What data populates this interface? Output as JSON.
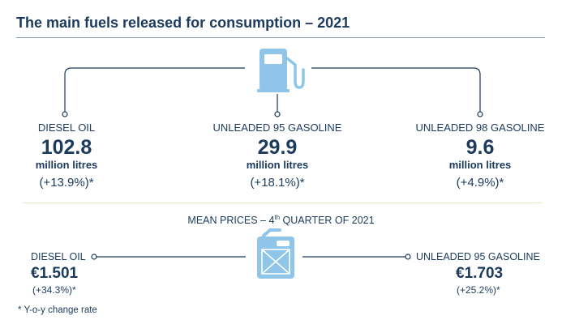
{
  "title": "The main fuels released for consumption – 2021",
  "icons": {
    "pump": "fuel-pump-icon",
    "canister": "jerry-can-icon"
  },
  "colors": {
    "navy": "#1b3a5c",
    "icon_blue": "#8ec5e8",
    "rule": "#8a9ab0",
    "divider": "#ece7c2"
  },
  "fuels": [
    {
      "name": "DIESEL OIL",
      "value": "102.8",
      "unit": "million litres",
      "change": "(+13.9%)*"
    },
    {
      "name": "UNLEADED 95 GASOLINE",
      "value": "29.9",
      "unit": "million litres",
      "change": "(+18.1%)*"
    },
    {
      "name": "UNLEADED 98 GASOLINE",
      "value": "9.6",
      "unit": "million litres",
      "change": "(+4.9%)*"
    }
  ],
  "prices": {
    "heading_prefix": "MEAN PRICES – 4",
    "heading_sup": "th",
    "heading_suffix": " QUARTER OF 2021",
    "items": [
      {
        "name": "DIESEL OIL",
        "value": "€1.501",
        "change": "(+34.3%)*"
      },
      {
        "name": "UNLEADED 95 GASOLINE",
        "value": "€1.703",
        "change": "(+25.2%)*"
      }
    ]
  },
  "footnote": "* Y-o-y change rate"
}
